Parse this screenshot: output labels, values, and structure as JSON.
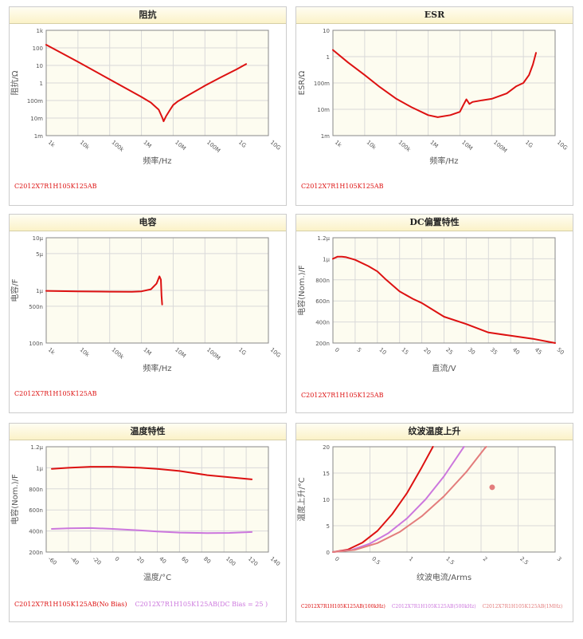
{
  "colors": {
    "red": "#dd1111",
    "pink": "#cc77dd",
    "salmon": "#e37c7c",
    "plot_bg": "#fdfcf0",
    "grid": "#d9d9d9",
    "axis": "#888888"
  },
  "chart_data": [
    {
      "id": "impedance",
      "type": "line",
      "title": "阻抗",
      "xlabel": "频率/Hz",
      "ylabel": "阻抗/Ω",
      "x_scale": "log",
      "y_scale": "log",
      "xlim": [
        1000,
        10000000000
      ],
      "ylim": [
        0.001,
        1000
      ],
      "xticks": [
        1000,
        10000,
        100000,
        1000000,
        10000000,
        100000000,
        1000000000,
        10000000000
      ],
      "xtick_labels": [
        "1k",
        "10k",
        "100k",
        "1M",
        "10M",
        "100M",
        "1G",
        "10G"
      ],
      "yticks": [
        0.001,
        0.01,
        0.1,
        1,
        10,
        100,
        1000
      ],
      "ytick_labels": [
        "1m",
        "10m",
        "100m",
        "1",
        "10",
        "100",
        "1k"
      ],
      "series": [
        {
          "name": "C2012X7R1H105K125AB",
          "color": "#dd1111",
          "points": [
            [
              1000,
              150
            ],
            [
              10000,
              16
            ],
            [
              100000,
              1.6
            ],
            [
              1000000,
              0.16
            ],
            [
              2000000,
              0.075
            ],
            [
              3500000,
              0.03
            ],
            [
              4600000,
              0.01
            ],
            [
              5000000,
              0.0065
            ],
            [
              6000000,
              0.013
            ],
            [
              8000000,
              0.03
            ],
            [
              10000000,
              0.055
            ],
            [
              14000000,
              0.09
            ],
            [
              30000000,
              0.2
            ],
            [
              100000000,
              0.7
            ],
            [
              300000000,
              2.0
            ],
            [
              1000000000,
              6
            ],
            [
              2000000000,
              12
            ]
          ]
        }
      ],
      "legend": [
        {
          "label": "C2012X7R1H105K125AB",
          "color": "#dd1111"
        }
      ]
    },
    {
      "id": "esr",
      "type": "line",
      "title": "ESR",
      "xlabel": "频率/Hz",
      "ylabel": "ESR/Ω",
      "x_scale": "log",
      "y_scale": "log",
      "xlim": [
        1000,
        10000000000
      ],
      "ylim": [
        0.001,
        10
      ],
      "xticks": [
        1000,
        10000,
        100000,
        1000000,
        10000000,
        100000000,
        1000000000,
        10000000000
      ],
      "xtick_labels": [
        "1k",
        "10k",
        "100k",
        "1M",
        "10M",
        "100M",
        "1G",
        "10G"
      ],
      "yticks": [
        0.001,
        0.01,
        0.1,
        1,
        10
      ],
      "ytick_labels": [
        "1m",
        "10m",
        "100m",
        "1",
        "10"
      ],
      "series": [
        {
          "name": "C2012X7R1H105K125AB",
          "color": "#dd1111",
          "points": [
            [
              1000,
              1.8
            ],
            [
              3000,
              0.6
            ],
            [
              10000,
              0.2
            ],
            [
              30000,
              0.07
            ],
            [
              100000,
              0.025
            ],
            [
              300000,
              0.012
            ],
            [
              1000000,
              0.006
            ],
            [
              2000000,
              0.005
            ],
            [
              5000000,
              0.006
            ],
            [
              10000000,
              0.008
            ],
            [
              13000000,
              0.015
            ],
            [
              16000000,
              0.024
            ],
            [
              20000000,
              0.016
            ],
            [
              25000000,
              0.019
            ],
            [
              50000000,
              0.022
            ],
            [
              100000000,
              0.025
            ],
            [
              300000000,
              0.04
            ],
            [
              600000000,
              0.075
            ],
            [
              1000000000,
              0.1
            ],
            [
              1500000000,
              0.2
            ],
            [
              2000000000,
              0.5
            ],
            [
              2500000000,
              1.4
            ]
          ]
        }
      ],
      "legend": [
        {
          "label": "C2012X7R1H105K125AB",
          "color": "#dd1111"
        }
      ]
    },
    {
      "id": "capacitance",
      "type": "line",
      "title": "电容",
      "xlabel": "频率/Hz",
      "ylabel": "电容/F",
      "x_scale": "log",
      "y_scale": "log",
      "xlim": [
        1000,
        10000000000
      ],
      "ylim": [
        1e-07,
        1e-05
      ],
      "xticks": [
        1000,
        10000,
        100000,
        1000000,
        10000000,
        100000000,
        1000000000,
        10000000000
      ],
      "xtick_labels": [
        "1k",
        "10k",
        "100k",
        "1M",
        "10M",
        "100M",
        "1G",
        "10G"
      ],
      "yticks": [
        1e-07,
        5e-07,
        1e-06,
        5e-06,
        1e-05
      ],
      "ytick_labels": [
        "100n",
        "500n",
        "1μ",
        "5μ",
        "10μ"
      ],
      "series": [
        {
          "name": "C2012X7R1H105K125AB",
          "color": "#dd1111",
          "points": [
            [
              1000,
              9.8e-07
            ],
            [
              10000,
              9.6e-07
            ],
            [
              100000,
              9.45e-07
            ],
            [
              500000,
              9.4e-07
            ],
            [
              1000000,
              9.6e-07
            ],
            [
              2000000,
              1.05e-06
            ],
            [
              3000000,
              1.35e-06
            ],
            [
              3700000,
              1.85e-06
            ],
            [
              4100000,
              1.6e-06
            ],
            [
              4300000,
              8e-07
            ],
            [
              4500000,
              5.4e-07
            ]
          ]
        }
      ],
      "legend": [
        {
          "label": "C2012X7R1H105K125AB",
          "color": "#dd1111"
        }
      ]
    },
    {
      "id": "dc_bias",
      "type": "line",
      "title": "DC偏置特性",
      "xlabel": "直流/V",
      "ylabel": "电容(Nom.)/F",
      "x_scale": "linear",
      "y_scale": "linear",
      "xlim": [
        0,
        50
      ],
      "ylim": [
        2e-07,
        1.2e-06
      ],
      "xticks": [
        0,
        5,
        10,
        15,
        20,
        25,
        30,
        35,
        40,
        45,
        50
      ],
      "xtick_labels": [
        "0",
        "5",
        "10",
        "15",
        "20",
        "25",
        "30",
        "35",
        "40",
        "45",
        "50"
      ],
      "yticks": [
        2e-07,
        4e-07,
        6e-07,
        8e-07,
        1e-06,
        1.2e-06
      ],
      "ytick_labels": [
        "200n",
        "400n",
        "600n",
        "800n",
        "1μ",
        "1.2μ"
      ],
      "series": [
        {
          "name": "C2012X7R1H105K125AB",
          "color": "#dd1111",
          "points": [
            [
              0,
              1e-06
            ],
            [
              1,
              1.02e-06
            ],
            [
              2,
              1.02e-06
            ],
            [
              3,
              1.015e-06
            ],
            [
              5,
              9.9e-07
            ],
            [
              8,
              9.3e-07
            ],
            [
              10,
              8.8e-07
            ],
            [
              12,
              8e-07
            ],
            [
              15,
              6.9e-07
            ],
            [
              18,
              6.2e-07
            ],
            [
              20,
              5.8e-07
            ],
            [
              25,
              4.5e-07
            ],
            [
              30,
              3.8e-07
            ],
            [
              35,
              3e-07
            ],
            [
              40,
              2.7e-07
            ],
            [
              45,
              2.4e-07
            ],
            [
              50,
              2e-07
            ]
          ]
        }
      ],
      "legend": [
        {
          "label": "C2012X7R1H105K125AB",
          "color": "#dd1111"
        }
      ]
    },
    {
      "id": "temperature",
      "type": "line",
      "title": "温度特性",
      "xlabel": "温度/°C",
      "ylabel": "电容(Nom.)/F",
      "x_scale": "linear",
      "y_scale": "linear",
      "xlim": [
        -60,
        140
      ],
      "ylim": [
        2e-07,
        1.2e-06
      ],
      "xticks": [
        -60,
        -40,
        -20,
        0,
        20,
        40,
        60,
        80,
        100,
        120,
        140
      ],
      "xtick_labels": [
        "-60",
        "-40",
        "-20",
        "0",
        "20",
        "40",
        "60",
        "80",
        "100",
        "120",
        "140"
      ],
      "yticks": [
        2e-07,
        4e-07,
        6e-07,
        8e-07,
        1e-06,
        1.2e-06
      ],
      "ytick_labels": [
        "200n",
        "400n",
        "600n",
        "800n",
        "1μ",
        "1.2μ"
      ],
      "series": [
        {
          "name": "C2012X7R1H105K125AB(No Bias)",
          "color": "#dd1111",
          "points": [
            [
              -55,
              9.9e-07
            ],
            [
              -40,
              1e-06
            ],
            [
              -20,
              1.01e-06
            ],
            [
              0,
              1.01e-06
            ],
            [
              25,
              1e-06
            ],
            [
              40,
              9.9e-07
            ],
            [
              60,
              9.7e-07
            ],
            [
              85,
              9.3e-07
            ],
            [
              105,
              9.1e-07
            ],
            [
              125,
              8.9e-07
            ]
          ]
        },
        {
          "name": "C2012X7R1H105K125AB(DC Bias = 25 )",
          "color": "#cc77dd",
          "points": [
            [
              -55,
              4.2e-07
            ],
            [
              -40,
              4.25e-07
            ],
            [
              -20,
              4.28e-07
            ],
            [
              0,
              4.2e-07
            ],
            [
              25,
              4.05e-07
            ],
            [
              40,
              3.95e-07
            ],
            [
              60,
              3.85e-07
            ],
            [
              85,
              3.8e-07
            ],
            [
              105,
              3.82e-07
            ],
            [
              125,
              3.9e-07
            ]
          ]
        }
      ],
      "legend": [
        {
          "label": "C2012X7R1H105K125AB(No Bias)",
          "color": "#dd1111"
        },
        {
          "label": "C2012X7R1H105K125AB(DC Bias = 25 )",
          "color": "#cc77dd"
        }
      ]
    },
    {
      "id": "ripple",
      "type": "line",
      "title": "纹波温度上升",
      "xlabel": "纹波电流/Arms",
      "ylabel": "温度上升/°C",
      "x_scale": "linear",
      "y_scale": "linear",
      "xlim": [
        0,
        3
      ],
      "ylim": [
        0,
        20
      ],
      "xticks": [
        0,
        0.5,
        1,
        1.5,
        2,
        2.5,
        3
      ],
      "xtick_labels": [
        "0",
        "0.5",
        "1",
        "1.5",
        "2",
        "2.5",
        "3"
      ],
      "yticks": [
        0,
        5,
        10,
        15,
        20
      ],
      "ytick_labels": [
        "0",
        "5",
        "10",
        "15",
        "20"
      ],
      "series": [
        {
          "name": "C2012X7R1H105K125AB(100kHz)",
          "color": "#dd1111",
          "points": [
            [
              0,
              0
            ],
            [
              0.2,
              0.45
            ],
            [
              0.4,
              1.8
            ],
            [
              0.6,
              4.0
            ],
            [
              0.8,
              7.2
            ],
            [
              1.0,
              11.2
            ],
            [
              1.2,
              16.1
            ],
            [
              1.35,
              20
            ]
          ]
        },
        {
          "name": "C2012X7R1H105K125AB(500kHz)",
          "color": "#cc77dd",
          "points": [
            [
              0,
              0
            ],
            [
              0.25,
              0.4
            ],
            [
              0.5,
              1.6
            ],
            [
              0.75,
              3.6
            ],
            [
              1.0,
              6.4
            ],
            [
              1.25,
              10.0
            ],
            [
              1.5,
              14.4
            ],
            [
              1.75,
              19.6
            ],
            [
              1.77,
              20
            ]
          ]
        },
        {
          "name": "C2012X7R1H105K125AB(1MHz)",
          "color": "#e37c7c",
          "points": [
            [
              0,
              0
            ],
            [
              0.3,
              0.42
            ],
            [
              0.6,
              1.7
            ],
            [
              0.9,
              3.8
            ],
            [
              1.2,
              6.8
            ],
            [
              1.5,
              10.6
            ],
            [
              1.8,
              15.2
            ],
            [
              2.05,
              19.7
            ],
            [
              2.07,
              20
            ]
          ]
        }
      ],
      "markers": [
        {
          "x": 2.15,
          "y": 12.3,
          "color": "#e37c7c"
        }
      ],
      "legend": [
        {
          "label": "C2012X7R1H105K125AB(100kHz)",
          "color": "#dd1111"
        },
        {
          "label": "C2012X7R1H105K125AB(500kHz)",
          "color": "#cc77dd"
        },
        {
          "label": "C2012X7R1H105K125AB(1MHz)",
          "color": "#e37c7c"
        }
      ]
    }
  ]
}
